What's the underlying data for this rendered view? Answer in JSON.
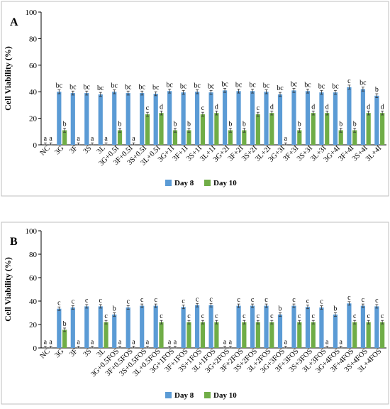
{
  "chart_data": [
    {
      "panel_label": "A",
      "type": "bar",
      "categories": [
        "NC",
        "3G",
        "3F",
        "3S",
        "3L",
        "3G+0.5I",
        "3F+0.5I",
        "3S+0.5I",
        "3L+0.5I",
        "3G+1I",
        "3F+1I",
        "3S+1I",
        "3L+1I",
        "3G+2I",
        "3F+2I",
        "3S+2I",
        "3L+2I",
        "3G+3I",
        "3F+3I",
        "3S+3I",
        "3L+3I",
        "3G+4I",
        "3F+4I",
        "3S+4I",
        "3L+4I"
      ],
      "ylabel": "Cell Viability (%)",
      "ylim": [
        0,
        100
      ],
      "yticks": [
        "0",
        "20",
        "40",
        "60",
        "80",
        "100"
      ],
      "legend_position": "bottom",
      "series": [
        {
          "name": "Day 8",
          "color": "#5b9bd5",
          "values": [
            0,
            40,
            39,
            39,
            38,
            40,
            39,
            39,
            38.5,
            40.5,
            39.5,
            40,
            39.5,
            41,
            40.5,
            40.5,
            40,
            38,
            41,
            40.5,
            39.5,
            39.5,
            43.5,
            42,
            37
          ],
          "errors": [
            1.5,
            1.5,
            1.5,
            1.5,
            1.5,
            1.5,
            1.5,
            1.5,
            1.5,
            1.5,
            1.5,
            1.5,
            1.5,
            1.5,
            1.5,
            1.5,
            1.5,
            1.5,
            1.5,
            1.5,
            1.5,
            1.5,
            1.5,
            1.5,
            1.5
          ],
          "letters": [
            "a",
            "bc",
            "bc",
            "bc",
            "bc",
            "bc",
            "bc",
            "bc",
            "bc",
            "bc",
            "bc",
            "bc",
            "bc",
            "bc",
            "bc",
            "bc",
            "bc",
            "bc",
            "bc",
            "bc",
            "bc",
            "bc",
            "c",
            "bc",
            "b"
          ]
        },
        {
          "name": "Day 10",
          "color": "#70ad47",
          "values": [
            0,
            11,
            0,
            0,
            0,
            11,
            0,
            23,
            24,
            11,
            11,
            23,
            24,
            11,
            11,
            23,
            24,
            0,
            11,
            24,
            24,
            11,
            11,
            24,
            24
          ],
          "errors": [
            1.5,
            1.5,
            1.5,
            1.5,
            1.5,
            1.5,
            1.5,
            1.5,
            1.5,
            1.5,
            1.5,
            1.5,
            1.5,
            1.5,
            1.5,
            1.5,
            1.5,
            1.5,
            1.5,
            1.5,
            1.5,
            1.5,
            1.5,
            1.5,
            1.5
          ],
          "letters": [
            "a",
            "b",
            "a",
            "a",
            "a",
            "b",
            "a",
            "c",
            "d",
            "b",
            "b",
            "c",
            "d",
            "b",
            "b",
            "c",
            "d",
            "a",
            "b",
            "d",
            "d",
            "b",
            "b",
            "d",
            "d"
          ]
        }
      ]
    },
    {
      "panel_label": "B",
      "type": "bar",
      "categories": [
        "NC",
        "3G",
        "3F",
        "3S",
        "3L",
        "3G+0.5FOS",
        "3F+0.5FOS",
        "3S+0.5FOS",
        "3L+0.5FOS",
        "3G+1FOS",
        "3F+1FOS",
        "3S+1FOS",
        "3L+1FOS",
        "3G+2FOS",
        "3F+2FOS",
        "3S+2FOS",
        "3L+2FOS",
        "3G+3FOS",
        "3F+3FOS",
        "3S+3FOS",
        "3L+3FOS",
        "3G+4FOS",
        "3F+4FOS",
        "3S+4FOS",
        "3L+4FOS"
      ],
      "ylabel": "Cell Viability (%)",
      "ylim": [
        0,
        100
      ],
      "yticks": [
        "0",
        "20",
        "40",
        "60",
        "80",
        "100"
      ],
      "legend_position": "bottom",
      "series": [
        {
          "name": "Day 8",
          "color": "#5b9bd5",
          "values": [
            0,
            33.5,
            34.5,
            35.5,
            35.5,
            28.5,
            34.5,
            36,
            36,
            0,
            35,
            36.5,
            36.5,
            0,
            36,
            36,
            36,
            28.5,
            36,
            35,
            34.5,
            28.5,
            38,
            36,
            35.5
          ],
          "errors": [
            1.5,
            1.5,
            1.5,
            1.5,
            1.5,
            1.5,
            1.5,
            1.5,
            1.5,
            1.5,
            1.5,
            1.5,
            1.5,
            1.5,
            1.5,
            1.5,
            1.5,
            1.5,
            1.5,
            1.5,
            1.5,
            1.5,
            1.5,
            1.5,
            1.5
          ],
          "letters": [
            "a",
            "c",
            "c",
            "c",
            "c",
            "b",
            "c",
            "c",
            "c",
            "a",
            "c",
            "c",
            "c",
            "a",
            "c",
            "c",
            "c",
            "b",
            "c",
            "c",
            "c",
            "b",
            "c",
            "c",
            "c"
          ]
        },
        {
          "name": "Day 10",
          "color": "#70ad47",
          "values": [
            0,
            15.5,
            0,
            0,
            22,
            0,
            0,
            0,
            22,
            0,
            22,
            22,
            22,
            0,
            22,
            22,
            22,
            0,
            22,
            22,
            0,
            0,
            22,
            22,
            22
          ],
          "errors": [
            1.5,
            1.5,
            1.5,
            1.5,
            1.5,
            1.5,
            1.5,
            1.5,
            1.5,
            1.5,
            1.5,
            1.5,
            1.5,
            1.5,
            1.5,
            1.5,
            1.5,
            1.5,
            1.5,
            1.5,
            1.5,
            1.5,
            1.5,
            1.5,
            1.5
          ],
          "letters": [
            "a",
            "b",
            "a",
            "a",
            "c",
            "a",
            "a",
            "a",
            "c",
            "a",
            "c",
            "c",
            "c",
            "a",
            "c",
            "c",
            "c",
            "a",
            "c",
            "c",
            "a",
            "a",
            "c",
            "c",
            "c"
          ]
        }
      ]
    }
  ]
}
